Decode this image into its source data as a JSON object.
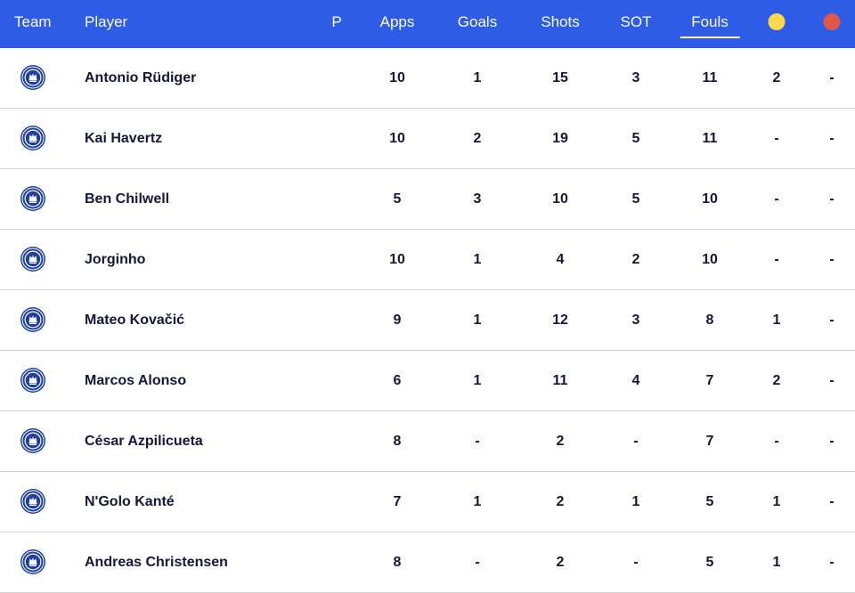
{
  "header": {
    "team": "Team",
    "player": "Player",
    "p": "P",
    "apps": "Apps",
    "goals": "Goals",
    "shots": "Shots",
    "sot": "SOT",
    "fouls": "Fouls",
    "yellow_icon": "yellow-card-icon",
    "red_icon": "red-card-icon",
    "sorted_by": "fouls"
  },
  "colors": {
    "header_bg": "#2e5ce6",
    "yellow": "#fcd94a",
    "red": "#e0584a",
    "crest_blue": "#1b3fa3"
  },
  "rows": [
    {
      "player": "Antonio Rüdiger",
      "apps": "10",
      "goals": "1",
      "shots": "15",
      "sot": "3",
      "fouls": "11",
      "yellow": "2",
      "red": "-"
    },
    {
      "player": "Kai Havertz",
      "apps": "10",
      "goals": "2",
      "shots": "19",
      "sot": "5",
      "fouls": "11",
      "yellow": "-",
      "red": "-"
    },
    {
      "player": "Ben Chilwell",
      "apps": "5",
      "goals": "3",
      "shots": "10",
      "sot": "5",
      "fouls": "10",
      "yellow": "-",
      "red": "-"
    },
    {
      "player": "Jorginho",
      "apps": "10",
      "goals": "1",
      "shots": "4",
      "sot": "2",
      "fouls": "10",
      "yellow": "-",
      "red": "-"
    },
    {
      "player": "Mateo Kovačić",
      "apps": "9",
      "goals": "1",
      "shots": "12",
      "sot": "3",
      "fouls": "8",
      "yellow": "1",
      "red": "-"
    },
    {
      "player": "Marcos Alonso",
      "apps": "6",
      "goals": "1",
      "shots": "11",
      "sot": "4",
      "fouls": "7",
      "yellow": "2",
      "red": "-"
    },
    {
      "player": "César Azpilicueta",
      "apps": "8",
      "goals": "-",
      "shots": "2",
      "sot": "-",
      "fouls": "7",
      "yellow": "-",
      "red": "-"
    },
    {
      "player": "N'Golo Kanté",
      "apps": "7",
      "goals": "1",
      "shots": "2",
      "sot": "1",
      "fouls": "5",
      "yellow": "1",
      "red": "-"
    },
    {
      "player": "Andreas Christensen",
      "apps": "8",
      "goals": "-",
      "shots": "2",
      "sot": "-",
      "fouls": "5",
      "yellow": "1",
      "red": "-"
    }
  ]
}
